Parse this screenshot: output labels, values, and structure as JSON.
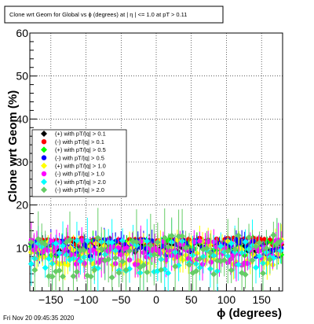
{
  "chart_data": {
    "type": "scatter",
    "title": "Clone wrt Geom for Global vs ϕ (degrees) at | η | <= 1.0 at pT > 0.11",
    "xlabel": "ϕ (degrees)",
    "ylabel": "Clone wrt Geom (%)",
    "xlim": [
      -180,
      180
    ],
    "ylim": [
      0,
      60
    ],
    "x_ticks": [
      -150,
      -100,
      -50,
      0,
      50,
      100,
      150
    ],
    "x_tick_labels": [
      "−150",
      "−100",
      "−50",
      "0",
      "50",
      "100",
      "150"
    ],
    "y_ticks": [
      0,
      10,
      20,
      30,
      40,
      50,
      60
    ],
    "y_tick_labels": [
      "",
      "10",
      "20",
      "30",
      "40",
      "50",
      "60"
    ],
    "grid": true,
    "legend_placement": "center-left",
    "footer": "Fri Nov 20 09:45:35 2020",
    "series": [
      {
        "name": "(+) with pT/|q| > 0.1",
        "color": "#000000",
        "marker": "diamond",
        "base": 10.5,
        "spread": 1.5,
        "err": 1.5,
        "dense": true
      },
      {
        "name": "(-) with pT/|q| > 0.1",
        "color": "#ff0000",
        "marker": "circle",
        "base": 11.5,
        "spread": 0.8,
        "err": 0.6,
        "dense": true
      },
      {
        "name": "(+) with pT/|q| > 0.5",
        "color": "#00ff00",
        "marker": "diamond",
        "base": 10.0,
        "spread": 2.0,
        "err": 2.0,
        "dense": true
      },
      {
        "name": "(-) with pT/|q| > 0.5",
        "color": "#0000ff",
        "marker": "circle",
        "base": 10.0,
        "spread": 2.0,
        "err": 2.0,
        "dense": true
      },
      {
        "name": "(+) with pT/|q| > 1.0",
        "color": "#ffff00",
        "marker": "diamond",
        "base": 9.0,
        "spread": 3.0,
        "err": 3.0,
        "dense": true
      },
      {
        "name": "(-) with pT/|q| > 1.0",
        "color": "#ff00ff",
        "marker": "circle",
        "base": 9.0,
        "spread": 3.0,
        "err": 3.0,
        "dense": true
      },
      {
        "name": "(+) with pT/|q| > 2.0",
        "color": "#00ffff",
        "marker": "diamond",
        "base": 8.0,
        "spread": 4.0,
        "err": 4.5,
        "dense": false
      },
      {
        "name": "(-) with pT/|q| > 2.0",
        "color": "#66cc66",
        "marker": "diamond",
        "base": 8.0,
        "spread": 5.0,
        "err": 5.5,
        "dense": false
      }
    ]
  }
}
